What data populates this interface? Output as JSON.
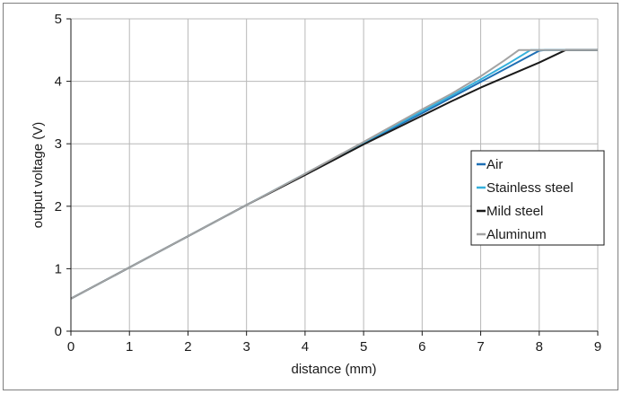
{
  "chart_data": {
    "type": "line",
    "xlabel": "distance (mm)",
    "ylabel": "output voltage (V)",
    "xlim": [
      0,
      9
    ],
    "ylim": [
      0,
      5
    ],
    "x_ticks": [
      0,
      1,
      2,
      3,
      4,
      5,
      6,
      7,
      8,
      9
    ],
    "y_ticks": [
      0,
      1,
      2,
      3,
      4,
      5
    ],
    "grid": true,
    "legend_position": "right",
    "series": [
      {
        "name": "Air",
        "color": "#1f6fb4",
        "points": [
          [
            0,
            0.52
          ],
          [
            1,
            1.02
          ],
          [
            2,
            1.52
          ],
          [
            3,
            2.02
          ],
          [
            4,
            2.51
          ],
          [
            5,
            3.01
          ],
          [
            6,
            3.49
          ],
          [
            6.5,
            3.74
          ],
          [
            7,
            3.99
          ],
          [
            7.5,
            4.24
          ],
          [
            8,
            4.49
          ],
          [
            8.1,
            4.5
          ],
          [
            9,
            4.5
          ]
        ]
      },
      {
        "name": "Stainless steel",
        "color": "#35b0dc",
        "points": [
          [
            0,
            0.52
          ],
          [
            1,
            1.02
          ],
          [
            2,
            1.52
          ],
          [
            3,
            2.02
          ],
          [
            4,
            2.52
          ],
          [
            5,
            3.02
          ],
          [
            6,
            3.52
          ],
          [
            6.5,
            3.77
          ],
          [
            7,
            4.03
          ],
          [
            7.5,
            4.3
          ],
          [
            7.85,
            4.5
          ],
          [
            9,
            4.5
          ]
        ]
      },
      {
        "name": "Mild steel",
        "color": "#1a1a1a",
        "points": [
          [
            0,
            0.52
          ],
          [
            1,
            1.02
          ],
          [
            2,
            1.52
          ],
          [
            3,
            2.02
          ],
          [
            4,
            2.5
          ],
          [
            5,
            2.99
          ],
          [
            6,
            3.45
          ],
          [
            6.5,
            3.68
          ],
          [
            7,
            3.9
          ],
          [
            7.5,
            4.1
          ],
          [
            8,
            4.3
          ],
          [
            8.45,
            4.5
          ],
          [
            9,
            4.5
          ]
        ]
      },
      {
        "name": "Aluminum",
        "color": "#a3a3a3",
        "points": [
          [
            0,
            0.52
          ],
          [
            1,
            1.02
          ],
          [
            2,
            1.52
          ],
          [
            3,
            2.02
          ],
          [
            4,
            2.52
          ],
          [
            5,
            3.03
          ],
          [
            6,
            3.55
          ],
          [
            6.5,
            3.8
          ],
          [
            7,
            4.08
          ],
          [
            7.4,
            4.33
          ],
          [
            7.65,
            4.5
          ],
          [
            9,
            4.5
          ]
        ]
      }
    ]
  }
}
